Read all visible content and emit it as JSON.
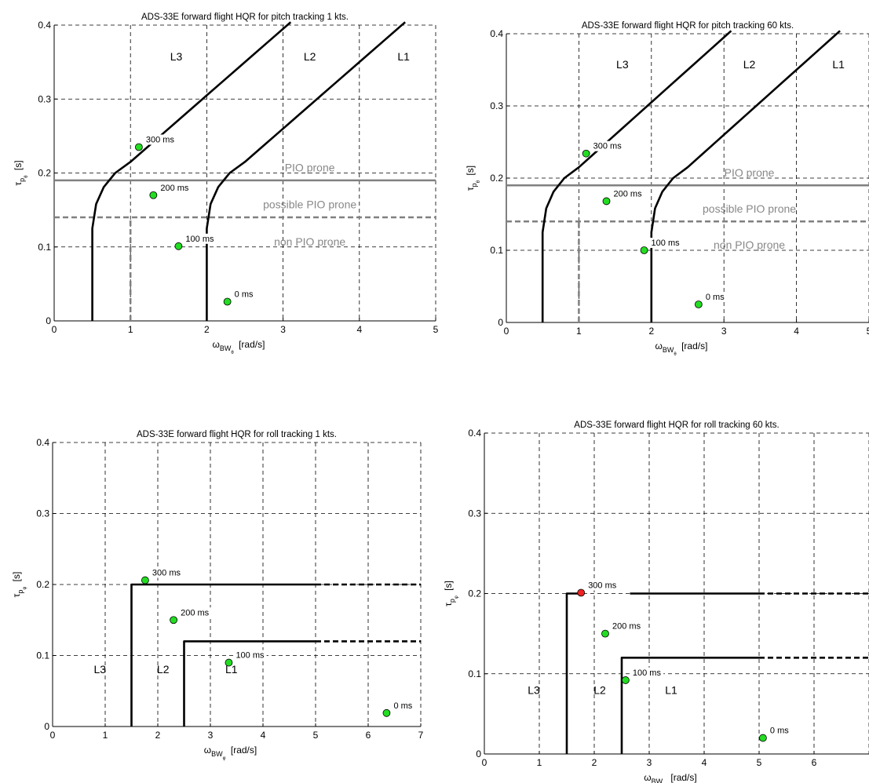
{
  "chart_data": [
    {
      "type": "line",
      "title": "ADS-33E forward flight HQR for pitch tracking 1 kts.",
      "xlabel": "ω_BW_θ [rad/s]",
      "ylabel": "τ_p_θ [s]",
      "xlim": [
        0,
        5
      ],
      "ylim": [
        0,
        0.4
      ],
      "xticks": [
        0,
        1,
        2,
        3,
        4,
        5
      ],
      "yticks": [
        0,
        0.1,
        0.2,
        0.3,
        0.4
      ],
      "grid": true,
      "boundaries": [
        {
          "name": "L2/L3",
          "x": [
            0.5,
            0.5,
            0.55,
            0.65,
            0.8,
            1.0,
            1.2,
            1.4,
            1.6,
            1.8,
            2.0,
            2.2,
            2.4,
            2.6,
            2.8,
            3.0,
            3.1
          ],
          "y": [
            0.0,
            0.125,
            0.158,
            0.181,
            0.2,
            0.215,
            0.233,
            0.251,
            0.269,
            0.287,
            0.305,
            0.323,
            0.341,
            0.359,
            0.377,
            0.395,
            0.404
          ]
        },
        {
          "name": "L1/L2",
          "x": [
            2.0,
            2.0,
            2.05,
            2.15,
            2.3,
            2.5,
            2.7,
            2.9,
            3.1,
            3.3,
            3.5,
            3.7,
            3.9,
            4.1,
            4.3,
            4.5,
            4.6
          ],
          "y": [
            0.0,
            0.125,
            0.158,
            0.181,
            0.2,
            0.215,
            0.233,
            0.251,
            0.269,
            0.287,
            0.305,
            0.323,
            0.341,
            0.359,
            0.377,
            0.395,
            0.404
          ]
        }
      ],
      "pio_lines": [
        {
          "name": "PIO prone",
          "x": [
            0,
            5
          ],
          "y": [
            0.19,
            0.19
          ],
          "style": "solid"
        },
        {
          "name": "possible PIO prone",
          "x": [
            0,
            5
          ],
          "y": [
            0.14,
            0.14
          ],
          "style": "dashed"
        },
        {
          "name": "non PIO prone",
          "x": [
            1,
            1
          ],
          "y": [
            0,
            0.14
          ],
          "style": "dashed"
        }
      ],
      "points": [
        {
          "label": "300 ms",
          "x": 1.11,
          "y": 0.235,
          "color": "#22dd22"
        },
        {
          "label": "200 ms",
          "x": 1.3,
          "y": 0.17,
          "color": "#22dd22"
        },
        {
          "label": "100 ms",
          "x": 1.63,
          "y": 0.101,
          "color": "#22dd22"
        },
        {
          "label": "0 ms",
          "x": 2.27,
          "y": 0.026,
          "color": "#22dd22"
        }
      ],
      "regions": [
        {
          "text": "L3",
          "x": 1.6,
          "y": 0.352
        },
        {
          "text": "L2",
          "x": 3.35,
          "y": 0.352
        },
        {
          "text": "L1",
          "x": 4.58,
          "y": 0.352
        }
      ],
      "annotations": [
        {
          "text": "PIO prone",
          "x": 3.35,
          "y": 0.202,
          "color": "#888888"
        },
        {
          "text": "possible PIO prone",
          "x": 3.35,
          "y": 0.152,
          "color": "#888888"
        },
        {
          "text": "non PIO prone",
          "x": 3.35,
          "y": 0.102,
          "color": "#888888"
        }
      ]
    },
    {
      "type": "line",
      "title": "ADS-33E forward flight HQR for pitch tracking 60 kts.",
      "xlabel": "ω_BW_θ [rad/s]",
      "ylabel": "τ_p_θ [s]",
      "xlim": [
        0,
        5
      ],
      "ylim": [
        0,
        0.4
      ],
      "xticks": [
        0,
        1,
        2,
        3,
        4,
        5
      ],
      "yticks": [
        0,
        0.1,
        0.2,
        0.3,
        0.4
      ],
      "grid": true,
      "boundaries": [
        {
          "name": "L2/L3",
          "x": [
            0.5,
            0.5,
            0.55,
            0.65,
            0.8,
            1.0,
            1.2,
            1.4,
            1.6,
            1.8,
            2.0,
            2.2,
            2.4,
            2.6,
            2.8,
            3.0,
            3.1
          ],
          "y": [
            0.0,
            0.125,
            0.158,
            0.181,
            0.2,
            0.215,
            0.233,
            0.251,
            0.269,
            0.287,
            0.305,
            0.323,
            0.341,
            0.359,
            0.377,
            0.395,
            0.404
          ]
        },
        {
          "name": "L1/L2",
          "x": [
            2.0,
            2.0,
            2.05,
            2.15,
            2.3,
            2.5,
            2.7,
            2.9,
            3.1,
            3.3,
            3.5,
            3.7,
            3.9,
            4.1,
            4.3,
            4.5,
            4.6
          ],
          "y": [
            0.0,
            0.125,
            0.158,
            0.181,
            0.2,
            0.215,
            0.233,
            0.251,
            0.269,
            0.287,
            0.305,
            0.323,
            0.341,
            0.359,
            0.377,
            0.395,
            0.404
          ]
        }
      ],
      "pio_lines": [
        {
          "name": "PIO prone",
          "x": [
            0,
            5
          ],
          "y": [
            0.19,
            0.19
          ],
          "style": "solid"
        },
        {
          "name": "possible PIO prone",
          "x": [
            0,
            5
          ],
          "y": [
            0.14,
            0.14
          ],
          "style": "dashed"
        },
        {
          "name": "non PIO prone",
          "x": [
            1,
            1
          ],
          "y": [
            0,
            0.14
          ],
          "style": "dashed"
        }
      ],
      "points": [
        {
          "label": "300 ms",
          "x": 1.1,
          "y": 0.234,
          "color": "#22dd22"
        },
        {
          "label": "200 ms",
          "x": 1.38,
          "y": 0.168,
          "color": "#22dd22"
        },
        {
          "label": "100 ms",
          "x": 1.9,
          "y": 0.1,
          "color": "#22dd22"
        },
        {
          "label": "0 ms",
          "x": 2.65,
          "y": 0.025,
          "color": "#22dd22"
        }
      ],
      "regions": [
        {
          "text": "L3",
          "x": 1.6,
          "y": 0.352
        },
        {
          "text": "L2",
          "x": 3.35,
          "y": 0.352
        },
        {
          "text": "L1",
          "x": 4.58,
          "y": 0.352
        }
      ],
      "annotations": [
        {
          "text": "PIO prone",
          "x": 3.35,
          "y": 0.202,
          "color": "#888888"
        },
        {
          "text": "possible PIO prone",
          "x": 3.35,
          "y": 0.152,
          "color": "#888888"
        },
        {
          "text": "non PIO prone",
          "x": 3.35,
          "y": 0.102,
          "color": "#888888"
        }
      ]
    },
    {
      "type": "line",
      "title": "ADS-33E forward flight HQR for roll tracking 1 kts.",
      "xlabel": "ω_BW_φ [rad/s]",
      "ylabel": "τ_p_φ [s]",
      "xlim": [
        0,
        7
      ],
      "ylim": [
        0,
        0.4
      ],
      "xticks": [
        0,
        1,
        2,
        3,
        4,
        5,
        6,
        7
      ],
      "yticks": [
        0,
        0.1,
        0.2,
        0.3,
        0.4
      ],
      "grid": true,
      "boundaries": [
        {
          "name": "L2/L3",
          "x": [
            1.5,
            1.5,
            5.0
          ],
          "y": [
            0,
            0.2,
            0.2
          ]
        },
        {
          "name": "L2/L3 extension",
          "x": [
            5.0,
            7.0
          ],
          "y": [
            0.2,
            0.2
          ],
          "style": "dashed"
        },
        {
          "name": "L1/L2",
          "x": [
            2.5,
            2.5,
            5.0
          ],
          "y": [
            0,
            0.12,
            0.12
          ]
        },
        {
          "name": "L1/L2 extension",
          "x": [
            5.0,
            7.0
          ],
          "y": [
            0.12,
            0.12
          ],
          "style": "dashed"
        }
      ],
      "points": [
        {
          "label": "300 ms",
          "x": 1.76,
          "y": 0.206,
          "color": "#22dd22"
        },
        {
          "label": "200 ms",
          "x": 2.3,
          "y": 0.15,
          "color": "#22dd22"
        },
        {
          "label": "100 ms",
          "x": 3.35,
          "y": 0.09,
          "color": "#22dd22"
        },
        {
          "label": "0 ms",
          "x": 6.35,
          "y": 0.019,
          "color": "#22dd22"
        }
      ],
      "regions": [
        {
          "text": "L3",
          "x": 0.9,
          "y": 0.075
        },
        {
          "text": "L2",
          "x": 2.1,
          "y": 0.075
        },
        {
          "text": "L1",
          "x": 3.4,
          "y": 0.075
        }
      ],
      "annotations": []
    },
    {
      "type": "line",
      "title": "ADS-33E forward flight HQR for roll tracking 60 kts.",
      "xlabel": "ω_BW_φ [rad/s]",
      "ylabel": "τ_p_φ [s]",
      "xlim": [
        0,
        7
      ],
      "ylim": [
        0,
        0.4
      ],
      "xticks": [
        0,
        1,
        2,
        3,
        4,
        5,
        6
      ],
      "yticks": [
        0,
        0.1,
        0.2,
        0.3,
        0.4
      ],
      "grid": true,
      "boundaries": [
        {
          "name": "L2/L3 left",
          "x": [
            1.5,
            1.5,
            1.75
          ],
          "y": [
            0,
            0.2,
            0.2
          ]
        },
        {
          "name": "L2/L3 right",
          "x": [
            2.65,
            5.0
          ],
          "y": [
            0.2,
            0.2
          ]
        },
        {
          "name": "L2/L3 extension",
          "x": [
            5.0,
            7.0
          ],
          "y": [
            0.2,
            0.2
          ],
          "style": "dashed"
        },
        {
          "name": "L1/L2",
          "x": [
            2.5,
            2.5,
            5.0
          ],
          "y": [
            0,
            0.12,
            0.12
          ]
        },
        {
          "name": "L1/L2 extension",
          "x": [
            5.0,
            7.0
          ],
          "y": [
            0.12,
            0.12
          ],
          "style": "dashed"
        }
      ],
      "points": [
        {
          "label": "300 ms",
          "x": 1.76,
          "y": 0.201,
          "color": "#ee2222"
        },
        {
          "label": "200 ms",
          "x": 2.2,
          "y": 0.15,
          "color": "#22dd22"
        },
        {
          "label": "100 ms",
          "x": 2.57,
          "y": 0.092,
          "color": "#22dd22"
        },
        {
          "label": "0 ms",
          "x": 5.07,
          "y": 0.02,
          "color": "#22dd22"
        }
      ],
      "regions": [
        {
          "text": "L3",
          "x": 0.9,
          "y": 0.075
        },
        {
          "text": "L2",
          "x": 2.1,
          "y": 0.075
        },
        {
          "text": "L1",
          "x": 3.4,
          "y": 0.075
        }
      ],
      "annotations": []
    }
  ]
}
